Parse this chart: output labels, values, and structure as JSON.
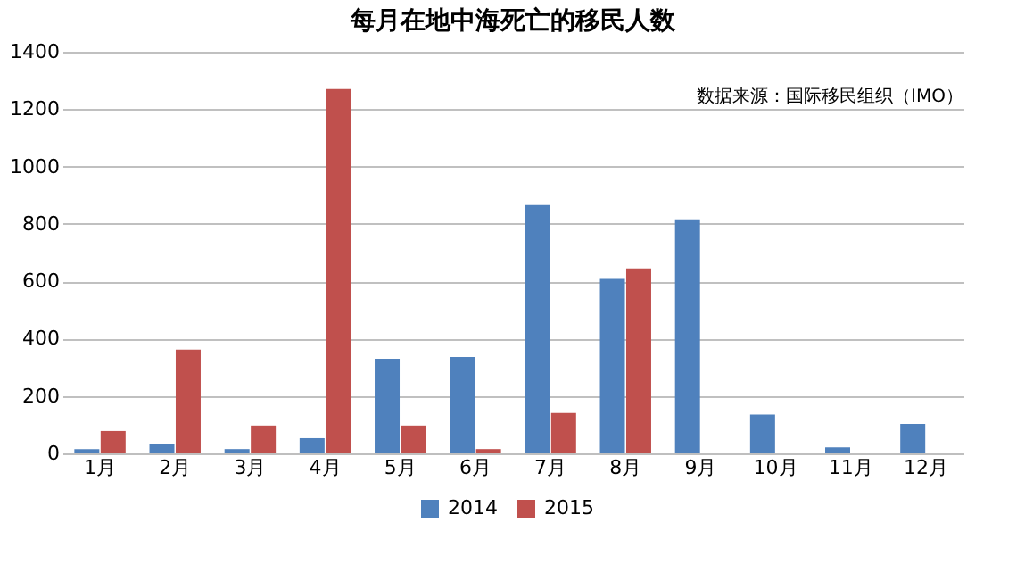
{
  "chart_data": {
    "type": "bar",
    "title": "每月在地中海死亡的移民人数",
    "categories": [
      "1月",
      "2月",
      "3月",
      "4月",
      "5月",
      "6月",
      "7月",
      "8月",
      "9月",
      "10月",
      "11月",
      "12月"
    ],
    "series": [
      {
        "name": "2014",
        "color": "#4f81bd",
        "values": [
          15,
          34,
          15,
          53,
          330,
          336,
          866,
          608,
          816,
          135,
          21,
          103
        ]
      },
      {
        "name": "2015",
        "color": "#c0504d",
        "values": [
          78,
          362,
          97,
          1270,
          97,
          15,
          141,
          645,
          null,
          null,
          null,
          null
        ]
      }
    ],
    "ylim": [
      0,
      1400
    ],
    "yticks": [
      0,
      200,
      400,
      600,
      800,
      1000,
      1200,
      1400
    ],
    "grid": "y",
    "legend": "bottom",
    "annotations": [
      "数据来源：国际移民组织（IMO）"
    ]
  }
}
